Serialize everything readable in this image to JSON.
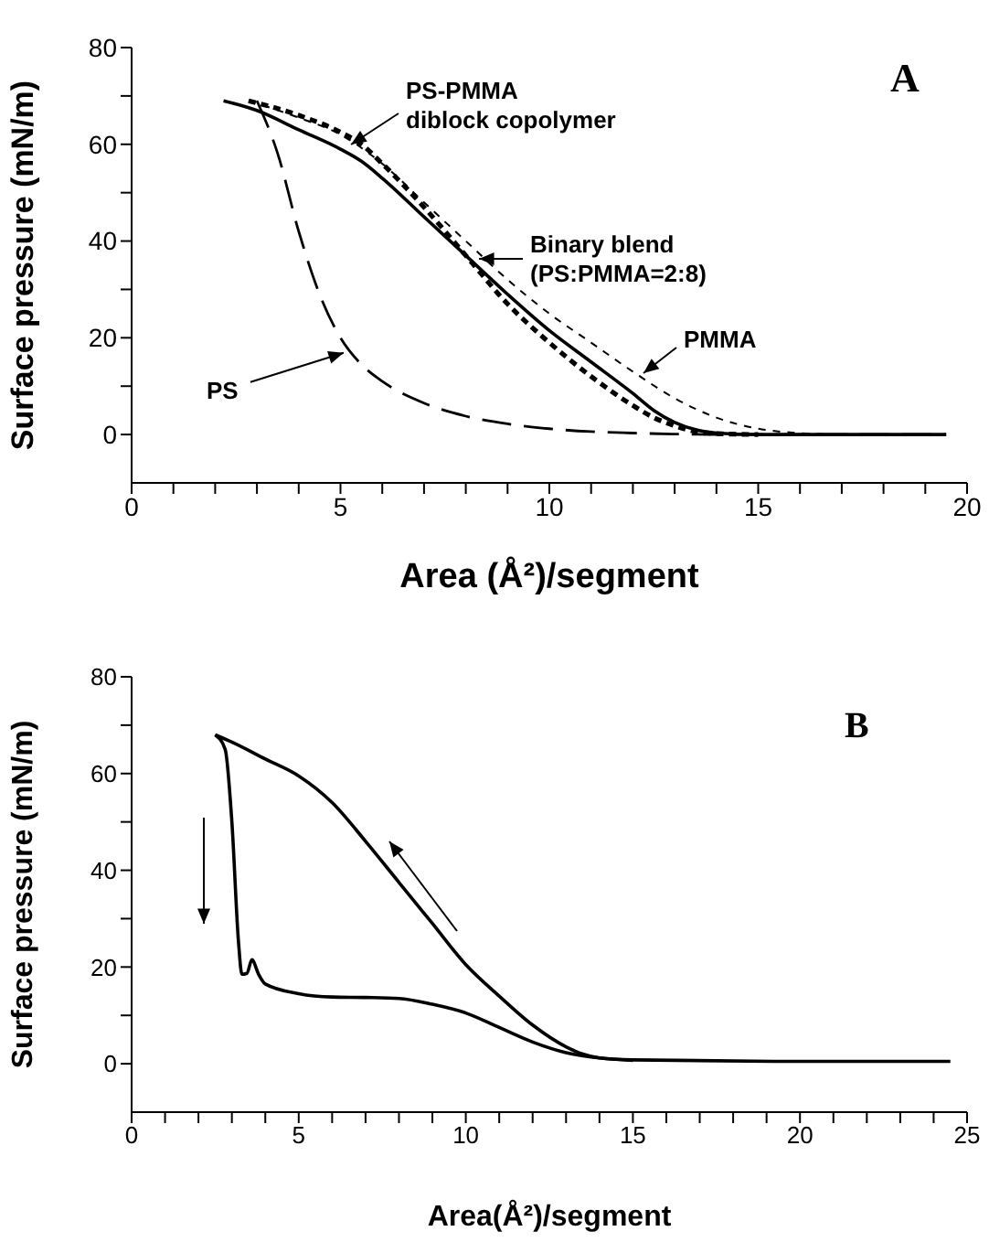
{
  "chart_data": [
    {
      "type": "line",
      "xlabel": "Area (Å²)/segment",
      "ylabel": "Surface pressure (mN/m)",
      "annotations": [
        "A"
      ],
      "marker": "none",
      "xlim": [
        0,
        20
      ],
      "ylim": [
        -10,
        80
      ],
      "xticks": [
        0,
        {
          "value": 1,
          "label": null
        },
        {
          "value": 2,
          "label": null
        },
        {
          "value": 3,
          "label": null
        },
        {
          "value": 4,
          "label": null
        },
        5,
        {
          "value": 6,
          "label": null
        },
        {
          "value": 7,
          "label": null
        },
        {
          "value": 8,
          "label": null
        },
        {
          "value": 9,
          "label": null
        },
        10,
        {
          "value": 11,
          "label": null
        },
        {
          "value": 12,
          "label": null
        },
        {
          "value": 13,
          "label": null
        },
        {
          "value": 14,
          "label": null
        },
        15,
        {
          "value": 16,
          "label": null
        },
        {
          "value": 17,
          "label": null
        },
        {
          "value": 18,
          "label": null
        },
        {
          "value": 19,
          "label": null
        },
        20
      ],
      "yticks": [
        0,
        {
          "value": 10,
          "label": null
        },
        20,
        {
          "value": 30,
          "label": null
        },
        40,
        {
          "value": 50,
          "label": null
        },
        60,
        {
          "value": 70,
          "label": null
        },
        80
      ],
      "series": [
        {
          "name": "PS-PMMA diblock copolymer",
          "color": "#000000",
          "line_style": "dotted",
          "x": [
            2.8,
            4,
            5,
            5.5,
            6,
            7,
            8,
            9,
            10,
            11,
            12,
            12.5,
            13,
            13.5,
            14,
            15
          ],
          "values": [
            69,
            66,
            62.5,
            60,
            56,
            47,
            37,
            27,
            19,
            12,
            6,
            3.5,
            1.8,
            0.6,
            0.2,
            0
          ]
        },
        {
          "name": "Binary blend (PS:PMMA=2:8)",
          "color": "#000000",
          "line_style": "solid",
          "x": [
            2.2,
            3,
            4,
            5,
            5.5,
            6,
            7,
            8,
            9,
            10,
            11,
            12,
            12.5,
            13,
            13.5,
            14,
            15,
            19.5
          ],
          "values": [
            69,
            67,
            63,
            59,
            56.5,
            53,
            45,
            37,
            29,
            21.5,
            15,
            8.5,
            5,
            2.5,
            1,
            0.3,
            0,
            0
          ]
        },
        {
          "name": "PMMA",
          "color": "#000000",
          "line_style": "dashed",
          "x": [
            2.8,
            4,
            5,
            6,
            7,
            8,
            9,
            10,
            11,
            12,
            13,
            14,
            15,
            16,
            17,
            19.5
          ],
          "values": [
            69,
            65.5,
            62,
            56,
            48,
            40,
            32,
            25,
            19,
            13,
            7.5,
            3.5,
            1.2,
            0.3,
            0,
            0
          ]
        },
        {
          "name": "PS",
          "color": "#000000",
          "line_style": "dashed",
          "x": [
            3,
            3.5,
            4,
            4.5,
            5,
            5.5,
            6,
            7,
            8,
            9,
            10,
            11,
            12,
            13,
            14,
            19.5
          ],
          "values": [
            69,
            58,
            42,
            29,
            20,
            14.5,
            11,
            6.5,
            3.8,
            2.2,
            1.2,
            0.6,
            0.3,
            0.1,
            0,
            0
          ]
        }
      ]
    },
    {
      "type": "line",
      "xlabel": "Area(Å²)/segment",
      "ylabel": "Surface pressure (mN/m)",
      "annotations": [
        "B"
      ],
      "marker": "none",
      "xlim": [
        0,
        25
      ],
      "ylim": [
        -10,
        80
      ],
      "xticks": [
        0,
        {
          "value": 1,
          "label": null
        },
        {
          "value": 2,
          "label": null
        },
        {
          "value": 3,
          "label": null
        },
        {
          "value": 4,
          "label": null
        },
        5,
        {
          "value": 6,
          "label": null
        },
        {
          "value": 7,
          "label": null
        },
        {
          "value": 8,
          "label": null
        },
        {
          "value": 9,
          "label": null
        },
        10,
        {
          "value": 11,
          "label": null
        },
        {
          "value": 12,
          "label": null
        },
        {
          "value": 13,
          "label": null
        },
        {
          "value": 14,
          "label": null
        },
        15,
        {
          "value": 16,
          "label": null
        },
        {
          "value": 17,
          "label": null
        },
        {
          "value": 18,
          "label": null
        },
        {
          "value": 19,
          "label": null
        },
        20,
        {
          "value": 21,
          "label": null
        },
        {
          "value": 22,
          "label": null
        },
        {
          "value": 23,
          "label": null
        },
        {
          "value": 24,
          "label": null
        },
        25
      ],
      "yticks": [
        0,
        {
          "value": 10,
          "label": null
        },
        20,
        {
          "value": 30,
          "label": null
        },
        40,
        {
          "value": 50,
          "label": null
        },
        60,
        {
          "value": 70,
          "label": null
        },
        80
      ],
      "series": [
        {
          "color": "#000000",
          "line_style": "solid",
          "x": [
            2.5,
            3,
            4,
            5,
            6,
            7,
            8,
            9,
            10,
            11,
            12,
            13,
            13.5,
            14,
            15,
            20,
            24.5
          ],
          "values": [
            68,
            66.5,
            63,
            59.5,
            54,
            46,
            37.5,
            29,
            20.5,
            14,
            8,
            3.5,
            2,
            1.2,
            0.8,
            0.5,
            0.5
          ]
        },
        {
          "color": "#000000",
          "line_style": "solid",
          "x": [
            2.5,
            2.8,
            3,
            3.2,
            3.3,
            3.45,
            3.6,
            3.8,
            4,
            5,
            6,
            7,
            8,
            9,
            10,
            11,
            12,
            13,
            14,
            15
          ],
          "values": [
            68,
            65,
            50,
            25,
            18.5,
            18.7,
            21.5,
            18.5,
            16.5,
            14.5,
            13.8,
            13.7,
            13.5,
            12.3,
            10.5,
            7.5,
            4.5,
            2.3,
            1.2,
            0.7
          ]
        }
      ]
    }
  ]
}
